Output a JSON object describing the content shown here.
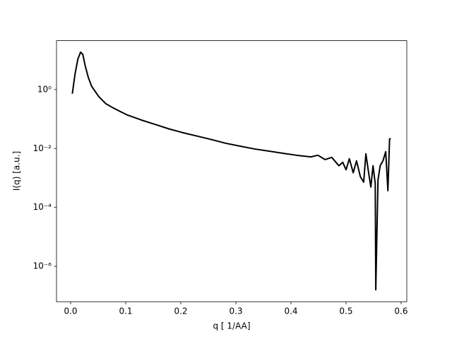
{
  "chart_data": {
    "type": "line",
    "x_label": "q [ 1/AA]",
    "y_label": "I(q) [a.u.]",
    "y_scale": "log",
    "color": "#000000",
    "x": [
      0.003,
      0.008,
      0.013,
      0.018,
      0.022,
      0.026,
      0.032,
      0.038,
      0.051,
      0.064,
      0.077,
      0.09,
      0.103,
      0.128,
      0.154,
      0.179,
      0.205,
      0.231,
      0.256,
      0.282,
      0.308,
      0.333,
      0.359,
      0.385,
      0.41,
      0.436,
      0.449,
      0.462,
      0.474,
      0.487,
      0.494,
      0.5,
      0.506,
      0.513,
      0.519,
      0.526,
      0.532,
      0.536,
      0.541,
      0.545,
      0.549,
      0.553,
      0.554,
      0.558,
      0.562,
      0.567,
      0.572,
      0.576,
      0.579,
      0.581
    ],
    "values": [
      0.72,
      3.4,
      10.7,
      18.6,
      15.8,
      6.9,
      2.6,
      1.3,
      0.58,
      0.33,
      0.24,
      0.18,
      0.137,
      0.093,
      0.065,
      0.046,
      0.034,
      0.026,
      0.02,
      0.015,
      0.012,
      0.0097,
      0.0082,
      0.0069,
      0.0059,
      0.0052,
      0.0059,
      0.0042,
      0.005,
      0.0026,
      0.0034,
      0.0019,
      0.0045,
      0.0015,
      0.0038,
      0.0011,
      0.00072,
      0.0066,
      0.0015,
      0.00049,
      0.0026,
      0.00064,
      1.6e-07,
      0.00085,
      0.0026,
      0.0038,
      0.0078,
      0.00037,
      0.021,
      0.022
    ],
    "xlim": [
      -0.0257,
      0.6103
    ],
    "ylim": [
      6.3e-08,
      45.7
    ],
    "xticks": [
      {
        "value": 0,
        "label": "0.0"
      },
      0.1,
      0.2,
      0.3,
      0.4,
      0.5,
      0.6
    ],
    "yticks": [
      {
        "value": 1,
        "label": "10⁰"
      },
      {
        "value": 0.01,
        "label": "10⁻²"
      },
      {
        "value": 0.0001,
        "label": "10⁻⁴"
      },
      {
        "value": 1e-06,
        "label": "10⁻⁶"
      }
    ]
  }
}
